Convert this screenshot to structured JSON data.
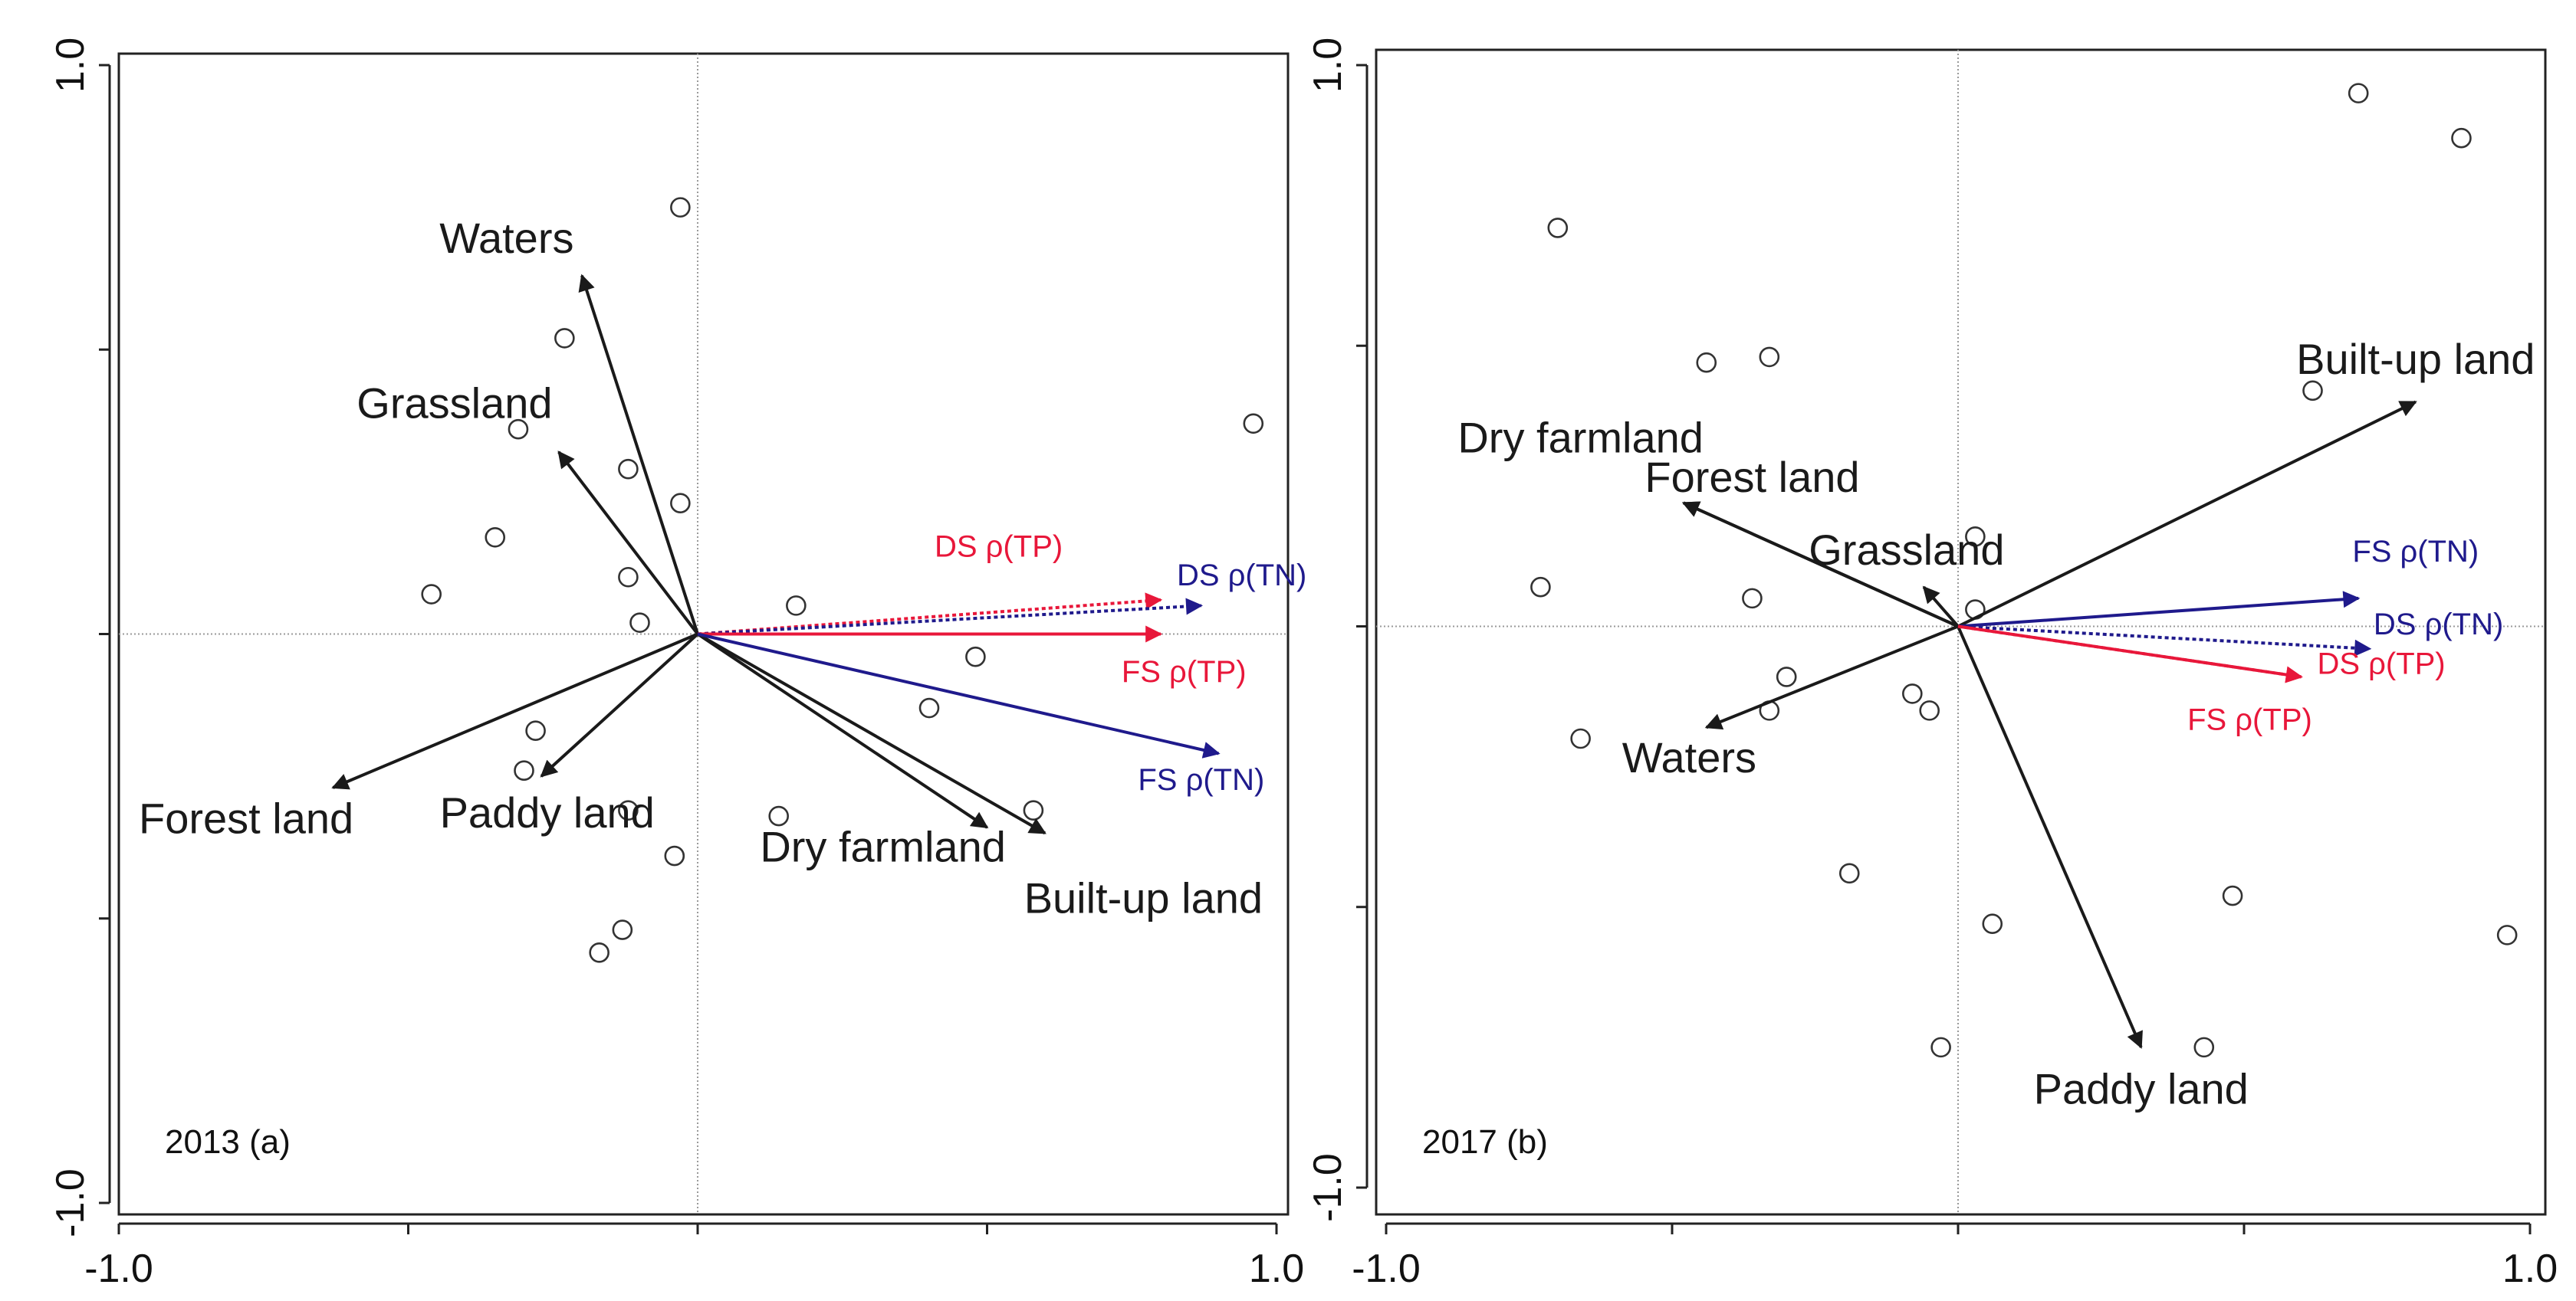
{
  "colors": {
    "axis": "#222222",
    "origin_line": "#9a9a9a",
    "land_arrow": "#1a1a1a",
    "tp": "#e8173a",
    "tn": "#1f1a8c",
    "site_marker": "#333333"
  },
  "chart_data": [
    {
      "type": "scatter",
      "subtype": "rda-biplot",
      "panel_label": "2013 (a)",
      "xlim": [
        -1.0,
        1.0
      ],
      "ylim": [
        -1.0,
        1.0
      ],
      "x_ticks": [
        -1.0,
        -0.5,
        0,
        0.5,
        1.0
      ],
      "y_ticks": [
        -1.0,
        -0.5,
        0,
        0.5,
        1.0
      ],
      "x_tick_labels": [
        "-1.0",
        "1.0"
      ],
      "y_tick_labels": [
        "1.0",
        "-1.0"
      ],
      "origin_lines": true,
      "explanatory_arrows": [
        {
          "label": "Waters",
          "x": -0.2,
          "y": 0.63,
          "color": "land",
          "lx": -0.33,
          "ly": 0.69
        },
        {
          "label": "Grassland",
          "x": -0.24,
          "y": 0.32,
          "color": "land",
          "lx": -0.42,
          "ly": 0.4
        },
        {
          "label": "Forest land",
          "x": -0.63,
          "y": -0.27,
          "color": "land",
          "lx": -0.78,
          "ly": -0.33
        },
        {
          "label": "Paddy land",
          "x": -0.27,
          "y": -0.25,
          "color": "land",
          "lx": -0.26,
          "ly": -0.32
        },
        {
          "label": "Dry farmland",
          "x": 0.5,
          "y": -0.34,
          "color": "land",
          "lx": 0.32,
          "ly": -0.38
        },
        {
          "label": "Built-up land",
          "x": 0.6,
          "y": -0.35,
          "color": "land",
          "lx": 0.77,
          "ly": -0.47
        }
      ],
      "response_arrows": [
        {
          "label": "DS ρ(TP)",
          "x": 0.8,
          "y": 0.06,
          "color": "tp",
          "dashed": true,
          "lx": 0.52,
          "ly": 0.15
        },
        {
          "label": "DS ρ(TN)",
          "x": 0.87,
          "y": 0.05,
          "color": "tn",
          "dashed": true,
          "lx": 0.94,
          "ly": 0.1
        },
        {
          "label": "FS ρ(TP)",
          "x": 0.8,
          "y": 0.0,
          "color": "tp",
          "dashed": false,
          "lx": 0.84,
          "ly": -0.07
        },
        {
          "label": "FS ρ(TN)",
          "x": 0.9,
          "y": -0.21,
          "color": "tn",
          "dashed": false,
          "lx": 0.87,
          "ly": -0.26
        }
      ],
      "sites": [
        [
          -0.03,
          0.75
        ],
        [
          -0.23,
          0.52
        ],
        [
          -0.31,
          0.36
        ],
        [
          -0.12,
          0.29
        ],
        [
          -0.03,
          0.23
        ],
        [
          -0.35,
          0.17
        ],
        [
          -0.46,
          0.07
        ],
        [
          -0.12,
          0.1
        ],
        [
          -0.1,
          0.02
        ],
        [
          0.17,
          0.05
        ],
        [
          0.48,
          -0.04
        ],
        [
          0.4,
          -0.13
        ],
        [
          -0.28,
          -0.17
        ],
        [
          -0.3,
          -0.24
        ],
        [
          -0.12,
          -0.31
        ],
        [
          0.14,
          -0.32
        ],
        [
          0.58,
          -0.31
        ],
        [
          -0.04,
          -0.39
        ],
        [
          -0.13,
          -0.52
        ],
        [
          -0.17,
          -0.56
        ],
        [
          0.96,
          0.37
        ]
      ]
    },
    {
      "type": "scatter",
      "subtype": "rda-biplot",
      "panel_label": "2017 (b)",
      "xlim": [
        -1.0,
        1.0
      ],
      "ylim": [
        -1.0,
        1.0
      ],
      "x_ticks": [
        -1.0,
        -0.5,
        0,
        0.5,
        1.0
      ],
      "y_ticks": [
        -1.0,
        -0.5,
        0,
        0.5,
        1.0
      ],
      "x_tick_labels": [
        "-1.0",
        "1.0"
      ],
      "y_tick_labels": [
        "1.0",
        "-1.0"
      ],
      "origin_lines": true,
      "explanatory_arrows": [
        {
          "label": "Built-up land",
          "x": 0.8,
          "y": 0.4,
          "color": "land",
          "lx": 0.8,
          "ly": 0.47
        },
        {
          "label": "Dry farmland",
          "x": -0.48,
          "y": 0.22,
          "color": "land",
          "lx": -0.66,
          "ly": 0.33
        },
        {
          "label": "Forest land",
          "x": -0.48,
          "y": 0.22,
          "color": "land",
          "lx": -0.36,
          "ly": 0.26
        },
        {
          "label": "Grassland",
          "x": -0.06,
          "y": 0.07,
          "color": "land",
          "lx": -0.09,
          "ly": 0.13
        },
        {
          "label": "Waters",
          "x": -0.44,
          "y": -0.18,
          "color": "land",
          "lx": -0.47,
          "ly": -0.24
        },
        {
          "label": "Paddy land",
          "x": 0.32,
          "y": -0.75,
          "color": "land",
          "lx": 0.32,
          "ly": -0.83
        }
      ],
      "response_arrows": [
        {
          "label": "FS ρ(TN)",
          "x": 0.7,
          "y": 0.05,
          "color": "tn",
          "dashed": false,
          "lx": 0.8,
          "ly": 0.13
        },
        {
          "label": "DS ρ(TN)",
          "x": 0.72,
          "y": -0.04,
          "color": "tn",
          "dashed": true,
          "lx": 0.84,
          "ly": 0.0
        },
        {
          "label": "DS ρ(TP)",
          "x": 0.6,
          "y": -0.09,
          "color": "tp",
          "dashed": true,
          "lx": 0.74,
          "ly": -0.07
        },
        {
          "label": "FS ρ(TP)",
          "x": 0.6,
          "y": -0.09,
          "color": "tp",
          "dashed": false,
          "lx": 0.51,
          "ly": -0.17
        }
      ],
      "sites": [
        [
          0.7,
          0.95
        ],
        [
          0.88,
          0.87
        ],
        [
          -0.7,
          0.71
        ],
        [
          -0.44,
          0.47
        ],
        [
          -0.33,
          0.48
        ],
        [
          0.62,
          0.42
        ],
        [
          0.03,
          0.16
        ],
        [
          -0.73,
          0.07
        ],
        [
          -0.36,
          0.05
        ],
        [
          0.03,
          0.03
        ],
        [
          -0.3,
          -0.09
        ],
        [
          -0.08,
          -0.12
        ],
        [
          -0.05,
          -0.15
        ],
        [
          -0.33,
          -0.15
        ],
        [
          -0.66,
          -0.2
        ],
        [
          -0.19,
          -0.44
        ],
        [
          0.48,
          -0.48
        ],
        [
          0.06,
          -0.53
        ],
        [
          0.96,
          -0.55
        ],
        [
          -0.03,
          -0.75
        ],
        [
          0.43,
          -0.75
        ]
      ]
    }
  ]
}
